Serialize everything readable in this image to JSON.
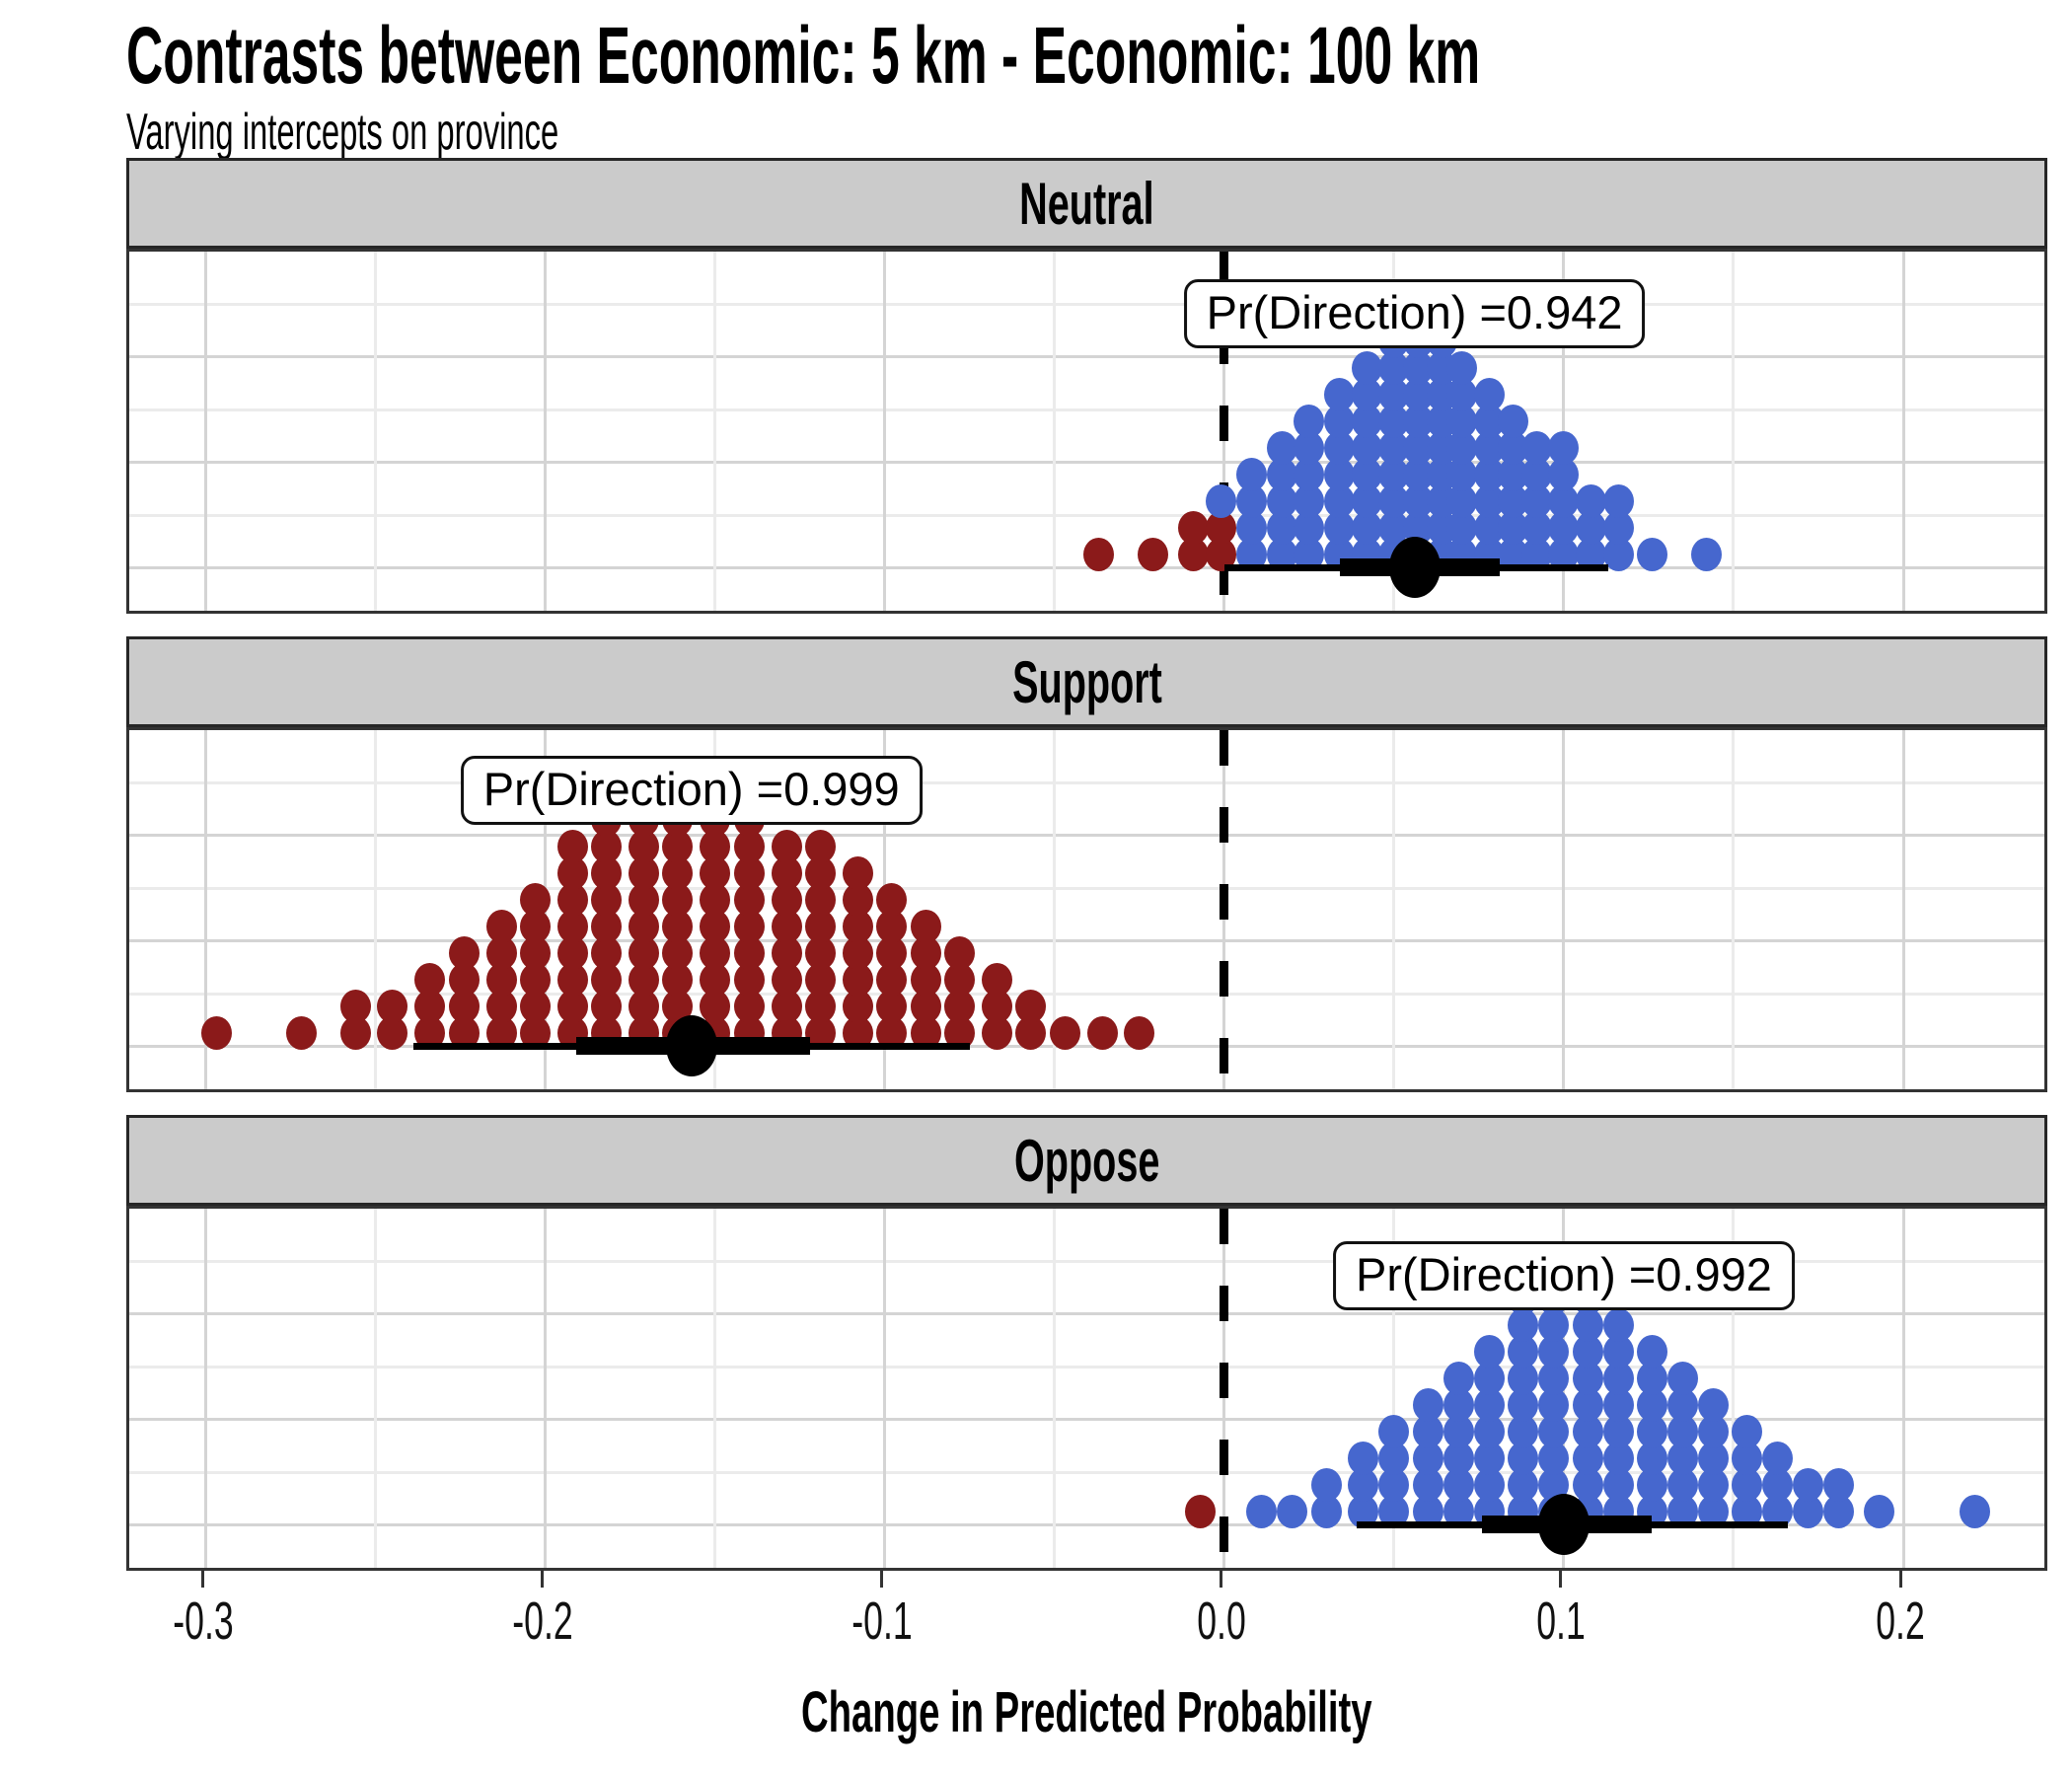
{
  "title": "Contrasts between Economic: 5 km - Economic: 100 km",
  "subtitle": "Varying intercepts on province",
  "style": {
    "strip_background": "#CBCBCB",
    "grid_major": "#D4D4D4",
    "grid_minor": "#EBEBEB",
    "panel_border": "#333333",
    "reference_line_color": "#000000"
  },
  "chart_data": {
    "type": "dotplot",
    "title": "Contrasts between Economic: 5 km - Economic: 100 km",
    "subtitle": "Varying intercepts on province",
    "xlabel": "Change in Predicted Probability",
    "ylabel": "",
    "xlim": [
      -0.3226,
      0.2433
    ],
    "x_ticks": {
      "values": [
        -0.3,
        -0.2,
        -0.1,
        0.0,
        0.1,
        0.2
      ],
      "labels": [
        "-0.3",
        "-0.2",
        "-0.1",
        "0.0",
        "0.1",
        "0.2"
      ]
    },
    "x_minor_gridlines": [
      -0.25,
      -0.15,
      -0.05,
      0.05,
      0.15
    ],
    "reference_line_x": 0.0,
    "grid": "on",
    "colors": {
      "positive_draws": "#4667CE",
      "negative_draws": "#8B1A1A",
      "point_interval": "#000000"
    },
    "facets": [
      {
        "label": "Neutral",
        "pr_text": "Pr(Direction) =0.942",
        "pr_direction": 0.942,
        "median": 0.056,
        "interval_thick": [
          0.034,
          0.081
        ],
        "interval_thin": [
          0.0,
          0.113
        ],
        "stacks": [
          {
            "x": -0.037,
            "n": 1,
            "red": 1
          },
          {
            "x": -0.021,
            "n": 1,
            "red": 1
          },
          {
            "x": -0.009,
            "n": 2,
            "red": 2
          },
          {
            "x": -0.001,
            "n": 3,
            "red": 2
          },
          {
            "x": 0.008,
            "n": 4,
            "red": 0
          },
          {
            "x": 0.017,
            "n": 5,
            "red": 0
          },
          {
            "x": 0.025,
            "n": 6,
            "red": 0
          },
          {
            "x": 0.034,
            "n": 7,
            "red": 0
          },
          {
            "x": 0.042,
            "n": 8,
            "red": 0
          },
          {
            "x": 0.05,
            "n": 9,
            "red": 0
          },
          {
            "x": 0.057,
            "n": 10,
            "red": 0
          },
          {
            "x": 0.064,
            "n": 9,
            "red": 0
          },
          {
            "x": 0.07,
            "n": 8,
            "red": 0
          },
          {
            "x": 0.078,
            "n": 7,
            "red": 0
          },
          {
            "x": 0.085,
            "n": 6,
            "red": 0
          },
          {
            "x": 0.092,
            "n": 5,
            "red": 0
          },
          {
            "x": 0.1,
            "n": 5,
            "red": 0
          },
          {
            "x": 0.108,
            "n": 3,
            "red": 0
          },
          {
            "x": 0.116,
            "n": 3,
            "red": 0
          },
          {
            "x": 0.126,
            "n": 1,
            "red": 0
          },
          {
            "x": 0.142,
            "n": 1,
            "red": 0
          }
        ]
      },
      {
        "label": "Support",
        "pr_text": "Pr(Direction) =0.999",
        "pr_direction": 0.999,
        "median": -0.157,
        "interval_thick": [
          -0.191,
          -0.122
        ],
        "interval_thin": [
          -0.239,
          -0.075
        ],
        "stacks": [
          {
            "x": -0.297,
            "n": 1,
            "red": 1
          },
          {
            "x": -0.272,
            "n": 1,
            "red": 1
          },
          {
            "x": -0.256,
            "n": 2,
            "red": 2
          },
          {
            "x": -0.245,
            "n": 2,
            "red": 2
          },
          {
            "x": -0.234,
            "n": 3,
            "red": 3
          },
          {
            "x": -0.224,
            "n": 4,
            "red": 4
          },
          {
            "x": -0.213,
            "n": 5,
            "red": 5
          },
          {
            "x": -0.203,
            "n": 6,
            "red": 6
          },
          {
            "x": -0.192,
            "n": 8,
            "red": 8
          },
          {
            "x": -0.182,
            "n": 9,
            "red": 9
          },
          {
            "x": -0.171,
            "n": 10,
            "red": 10
          },
          {
            "x": -0.161,
            "n": 10,
            "red": 10
          },
          {
            "x": -0.15,
            "n": 10,
            "red": 10
          },
          {
            "x": -0.14,
            "n": 9,
            "red": 9
          },
          {
            "x": -0.129,
            "n": 8,
            "red": 8
          },
          {
            "x": -0.119,
            "n": 8,
            "red": 8
          },
          {
            "x": -0.108,
            "n": 7,
            "red": 7
          },
          {
            "x": -0.098,
            "n": 6,
            "red": 6
          },
          {
            "x": -0.088,
            "n": 5,
            "red": 5
          },
          {
            "x": -0.078,
            "n": 4,
            "red": 4
          },
          {
            "x": -0.067,
            "n": 3,
            "red": 3
          },
          {
            "x": -0.057,
            "n": 2,
            "red": 2
          },
          {
            "x": -0.047,
            "n": 1,
            "red": 1
          },
          {
            "x": -0.036,
            "n": 1,
            "red": 1
          },
          {
            "x": -0.025,
            "n": 1,
            "red": 1
          }
        ]
      },
      {
        "label": "Oppose",
        "pr_text": "Pr(Direction) =0.992",
        "pr_direction": 0.992,
        "median": 0.1,
        "interval_thick": [
          0.076,
          0.126
        ],
        "interval_thin": [
          0.039,
          0.166
        ],
        "stacks": [
          {
            "x": -0.007,
            "n": 1,
            "red": 1
          },
          {
            "x": 0.011,
            "n": 1,
            "red": 0
          },
          {
            "x": 0.02,
            "n": 1,
            "red": 0
          },
          {
            "x": 0.03,
            "n": 2,
            "red": 0
          },
          {
            "x": 0.041,
            "n": 3,
            "red": 0
          },
          {
            "x": 0.05,
            "n": 4,
            "red": 0
          },
          {
            "x": 0.06,
            "n": 5,
            "red": 0
          },
          {
            "x": 0.069,
            "n": 6,
            "red": 0
          },
          {
            "x": 0.078,
            "n": 7,
            "red": 0
          },
          {
            "x": 0.088,
            "n": 9,
            "red": 0
          },
          {
            "x": 0.097,
            "n": 9,
            "red": 0
          },
          {
            "x": 0.107,
            "n": 9,
            "red": 0
          },
          {
            "x": 0.116,
            "n": 8,
            "red": 0
          },
          {
            "x": 0.126,
            "n": 7,
            "red": 0
          },
          {
            "x": 0.135,
            "n": 6,
            "red": 0
          },
          {
            "x": 0.144,
            "n": 5,
            "red": 0
          },
          {
            "x": 0.154,
            "n": 4,
            "red": 0
          },
          {
            "x": 0.163,
            "n": 3,
            "red": 0
          },
          {
            "x": 0.172,
            "n": 2,
            "red": 0
          },
          {
            "x": 0.181,
            "n": 2,
            "red": 0
          },
          {
            "x": 0.193,
            "n": 1,
            "red": 0
          },
          {
            "x": 0.221,
            "n": 1,
            "red": 0
          }
        ]
      }
    ]
  }
}
